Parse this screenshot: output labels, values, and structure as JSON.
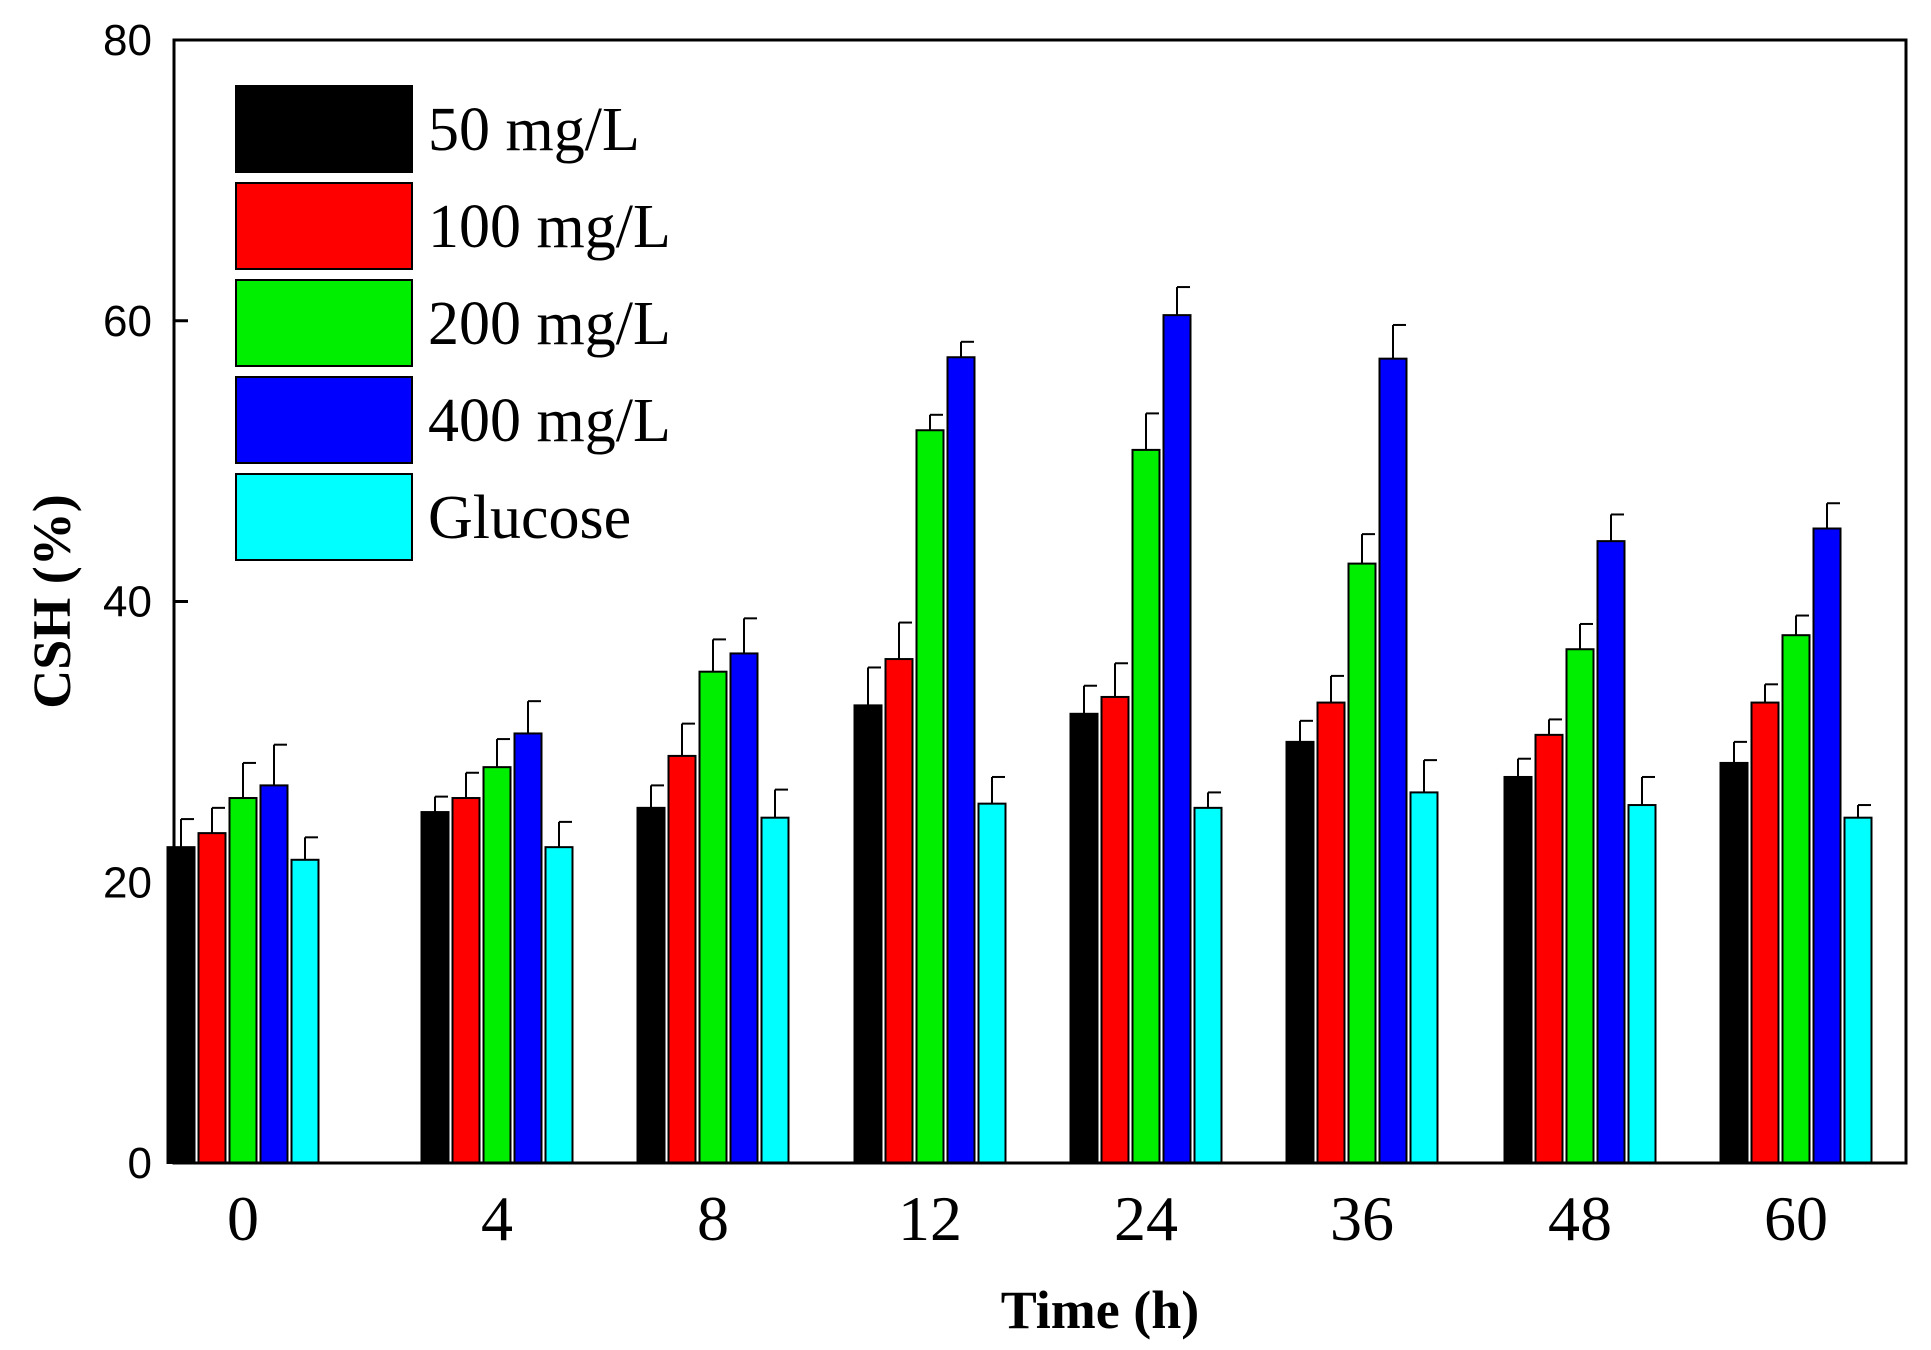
{
  "chart_data": {
    "type": "bar",
    "title": "",
    "xlabel": "Time (h)",
    "ylabel": "CSH (%)",
    "ylim": [
      0,
      80
    ],
    "yticks": [
      "0",
      "20",
      "40",
      "60",
      "80"
    ],
    "categories": [
      "0",
      "4",
      "8",
      "12",
      "24",
      "36",
      "48",
      "60"
    ],
    "legend_position": "top-left",
    "error_bars": true,
    "series": [
      {
        "name": "50 mg/L",
        "color": "#000000",
        "values": [
          22.5,
          25.0,
          25.3,
          32.6,
          32.0,
          30.0,
          27.5,
          28.5
        ],
        "errors": [
          2.0,
          1.1,
          1.6,
          2.7,
          2.0,
          1.5,
          1.3,
          1.5
        ]
      },
      {
        "name": "100 mg/L",
        "color": "#ff0000",
        "values": [
          23.5,
          26.0,
          29.0,
          35.9,
          33.2,
          32.8,
          30.5,
          32.8
        ],
        "errors": [
          1.8,
          1.8,
          2.3,
          2.6,
          2.4,
          1.9,
          1.1,
          1.3
        ]
      },
      {
        "name": "200 mg/L",
        "color": "#00ee00",
        "values": [
          26.0,
          28.2,
          35.0,
          52.2,
          50.8,
          42.7,
          36.6,
          37.6
        ],
        "errors": [
          2.5,
          2.0,
          2.3,
          1.1,
          2.6,
          2.1,
          1.8,
          1.4
        ]
      },
      {
        "name": "400 mg/L",
        "color": "#0000ff",
        "values": [
          26.9,
          30.6,
          36.3,
          57.4,
          60.4,
          57.3,
          44.3,
          45.2
        ],
        "errors": [
          2.9,
          2.3,
          2.5,
          1.1,
          2.0,
          2.4,
          1.9,
          1.8
        ]
      },
      {
        "name": "Glucose",
        "color": "#00ffff",
        "values": [
          21.6,
          22.5,
          24.6,
          25.6,
          25.3,
          26.4,
          25.5,
          24.6
        ],
        "errors": [
          1.6,
          1.8,
          2.0,
          1.9,
          1.1,
          2.3,
          2.0,
          0.9
        ]
      }
    ]
  }
}
